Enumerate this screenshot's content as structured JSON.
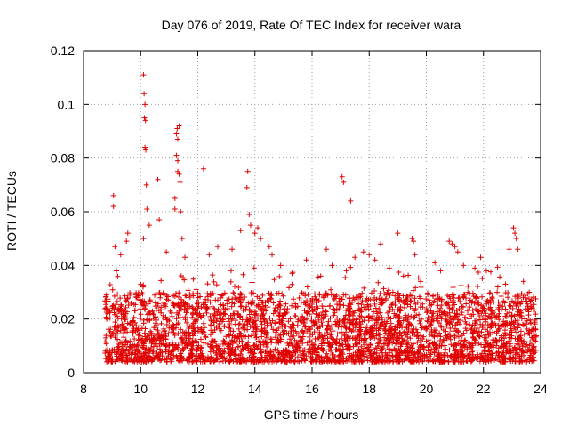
{
  "chart_data": {
    "type": "scatter",
    "title": "Day 076 of 2019, Rate Of TEC Index for receiver wara",
    "xlabel": "GPS time / hours",
    "ylabel": "ROTI / TECUs",
    "xlim": [
      8,
      24
    ],
    "ylim": [
      0,
      0.12
    ],
    "xticks": [
      8,
      10,
      12,
      14,
      16,
      18,
      20,
      22,
      24
    ],
    "yticks": [
      0,
      0.02,
      0.04,
      0.06,
      0.08,
      0.1,
      0.12
    ],
    "xtick_labels": [
      "8",
      "10",
      "12",
      "14",
      "16",
      "18",
      "20",
      "22",
      "24"
    ],
    "ytick_labels": [
      "0",
      "0.02",
      "0.04",
      "0.06",
      "0.08",
      "0.1",
      "0.12"
    ],
    "grid": true,
    "marker": "+",
    "color": "#e00000",
    "series": [
      {
        "name": "ROTI",
        "x_range": [
          8.75,
          23.85
        ],
        "background": {
          "base_range": [
            0.004,
            0.03
          ],
          "points_per_hour": 220,
          "seed": 7
        },
        "points": [
          [
            9.05,
            0.066
          ],
          [
            9.05,
            0.062
          ],
          [
            9.1,
            0.047
          ],
          [
            9.3,
            0.044
          ],
          [
            9.5,
            0.049
          ],
          [
            9.55,
            0.052
          ],
          [
            10.1,
            0.111
          ],
          [
            10.12,
            0.104
          ],
          [
            10.15,
            0.1
          ],
          [
            10.13,
            0.095
          ],
          [
            10.17,
            0.094
          ],
          [
            10.15,
            0.084
          ],
          [
            10.18,
            0.083
          ],
          [
            10.2,
            0.07
          ],
          [
            10.22,
            0.061
          ],
          [
            10.1,
            0.05
          ],
          [
            10.3,
            0.055
          ],
          [
            10.6,
            0.072
          ],
          [
            10.65,
            0.057
          ],
          [
            10.9,
            0.045
          ],
          [
            11.2,
            0.065
          ],
          [
            11.25,
            0.089
          ],
          [
            11.28,
            0.091
          ],
          [
            11.3,
            0.087
          ],
          [
            11.35,
            0.092
          ],
          [
            11.25,
            0.081
          ],
          [
            11.3,
            0.079
          ],
          [
            11.3,
            0.075
          ],
          [
            11.35,
            0.074
          ],
          [
            11.38,
            0.071
          ],
          [
            11.2,
            0.061
          ],
          [
            11.4,
            0.06
          ],
          [
            11.45,
            0.05
          ],
          [
            11.55,
            0.043
          ],
          [
            12.2,
            0.076
          ],
          [
            12.4,
            0.044
          ],
          [
            12.7,
            0.047
          ],
          [
            13.2,
            0.046
          ],
          [
            13.5,
            0.053
          ],
          [
            13.75,
            0.075
          ],
          [
            13.72,
            0.069
          ],
          [
            13.8,
            0.059
          ],
          [
            13.85,
            0.055
          ],
          [
            14.0,
            0.052
          ],
          [
            14.1,
            0.054
          ],
          [
            14.2,
            0.05
          ],
          [
            14.5,
            0.047
          ],
          [
            14.6,
            0.044
          ],
          [
            14.9,
            0.04
          ],
          [
            15.3,
            0.037
          ],
          [
            15.8,
            0.042
          ],
          [
            16.3,
            0.036
          ],
          [
            16.5,
            0.046
          ],
          [
            16.7,
            0.04
          ],
          [
            17.05,
            0.073
          ],
          [
            17.1,
            0.071
          ],
          [
            17.35,
            0.064
          ],
          [
            17.2,
            0.038
          ],
          [
            17.5,
            0.043
          ],
          [
            17.8,
            0.045
          ],
          [
            18.0,
            0.044
          ],
          [
            18.2,
            0.042
          ],
          [
            18.4,
            0.048
          ],
          [
            18.7,
            0.039
          ],
          [
            19.0,
            0.052
          ],
          [
            19.2,
            0.036
          ],
          [
            19.5,
            0.05
          ],
          [
            19.55,
            0.049
          ],
          [
            19.6,
            0.044
          ],
          [
            19.8,
            0.034
          ],
          [
            20.3,
            0.041
          ],
          [
            20.5,
            0.038
          ],
          [
            20.8,
            0.049
          ],
          [
            20.9,
            0.048
          ],
          [
            21.0,
            0.047
          ],
          [
            21.1,
            0.045
          ],
          [
            21.3,
            0.04
          ],
          [
            21.7,
            0.039
          ],
          [
            21.9,
            0.043
          ],
          [
            22.1,
            0.038
          ],
          [
            22.5,
            0.032
          ],
          [
            22.9,
            0.046
          ],
          [
            23.05,
            0.054
          ],
          [
            23.1,
            0.052
          ],
          [
            23.15,
            0.05
          ],
          [
            23.2,
            0.046
          ],
          [
            23.4,
            0.034
          ],
          [
            23.6,
            0.03
          ]
        ]
      }
    ]
  }
}
